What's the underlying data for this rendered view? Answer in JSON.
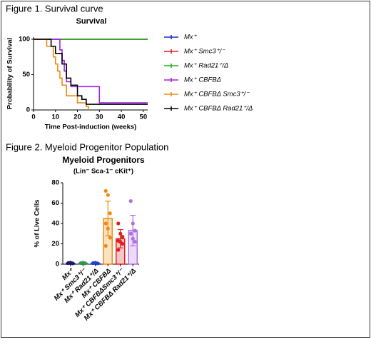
{
  "chart_data": [
    {
      "type": "line",
      "step": true,
      "caption": "Figure 1. Survival curve",
      "title": "Survival",
      "ylabel": "Probability of Survival",
      "xlabel": "Time Post-induction (weeks)",
      "xlim": [
        0,
        52
      ],
      "xticks": [
        0,
        10,
        20,
        30,
        40,
        50
      ],
      "ylim": [
        0,
        103
      ],
      "yticks": [
        0,
        50,
        100
      ],
      "legend": "right",
      "series": [
        {
          "name": "Mx⁺",
          "color": "#1f2fbf",
          "x": [
            0,
            52
          ],
          "values": [
            100,
            100
          ]
        },
        {
          "name": "Mx⁺ Smc3⁺/⁻",
          "color": "#e02020",
          "x": [
            0,
            52
          ],
          "values": [
            100,
            100
          ]
        },
        {
          "name": "Mx⁺ Rad21⁺/Δ",
          "color": "#20b020",
          "x": [
            0,
            52
          ],
          "values": [
            100,
            100
          ]
        },
        {
          "name": "Mx⁺ CBFBΔ",
          "color": "#a020f0",
          "x": [
            0,
            12,
            13,
            14,
            15,
            17,
            30,
            52
          ],
          "values": [
            100,
            85,
            70,
            55,
            40,
            33,
            10,
            10
          ]
        },
        {
          "name": "Mx⁺ CBFBΔ Smc3⁺/⁻",
          "color": "#f08a10",
          "x": [
            0,
            6,
            9,
            10,
            11,
            12,
            13,
            15,
            20,
            24,
            25
          ],
          "values": [
            100,
            90,
            75,
            65,
            55,
            45,
            35,
            20,
            10,
            5,
            0
          ]
        },
        {
          "name": "Mx⁺ CBFBΔ Rad21⁺/Δ",
          "color": "#000000",
          "x": [
            0,
            8,
            10,
            13,
            15,
            17,
            20,
            22,
            24,
            52
          ],
          "values": [
            100,
            90,
            80,
            65,
            45,
            35,
            20,
            15,
            8,
            8
          ]
        }
      ]
    },
    {
      "type": "bar",
      "caption": "Figure 2. Myeloid Progenitor Population",
      "title": "Myeloid Progenitors",
      "subtitle": "(Lin⁻ Sca-1⁻ cKit⁺)",
      "ylabel": "% of Live Cells",
      "ylim": [
        0,
        80
      ],
      "yticks": [
        0,
        20,
        40,
        60,
        80
      ],
      "categories": [
        "Mx⁺",
        "Mx⁺ Smc3⁺/⁻",
        "Mx⁺ Rad21⁺/Δ",
        "Mx⁺ CBFBΔ",
        "Mx⁺ CBFBΔSmc3⁺/⁻",
        "Mx⁺ CBFBΔ Rad21⁺/Δ"
      ],
      "values": [
        1,
        1,
        1,
        45,
        25,
        33
      ],
      "errors": [
        0.5,
        0.5,
        0.5,
        17,
        9,
        15
      ],
      "colors": [
        "#1a1a6a",
        "#2a9a4a",
        "#2040d0",
        "#f08a10",
        "#e02020",
        "#b070e0"
      ],
      "points": [
        [
          1,
          1.5,
          0.8,
          1.2
        ],
        [
          1,
          1.4,
          0.9
        ],
        [
          1,
          1.3,
          0.8,
          1.1
        ],
        [
          72,
          68,
          50,
          40,
          35,
          26,
          18
        ],
        [
          40,
          30,
          27,
          23,
          22,
          20,
          14
        ],
        [
          62,
          40,
          33,
          30,
          25,
          22
        ]
      ]
    }
  ]
}
